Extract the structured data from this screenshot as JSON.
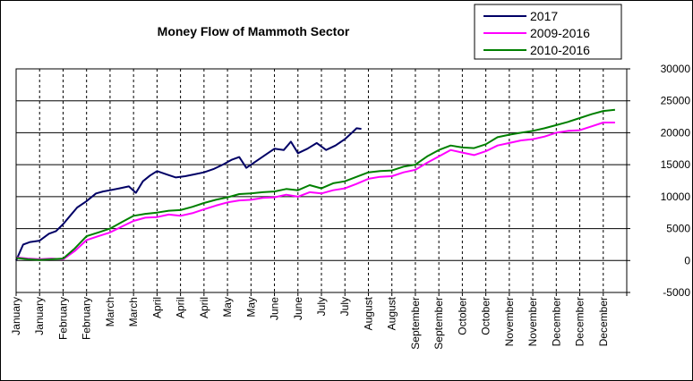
{
  "chart_data": {
    "type": "line",
    "title": "Money Flow of Mammoth Sector",
    "xlabel": "",
    "ylabel": "",
    "ylim": [
      -5000,
      30000
    ],
    "y_ticks": [
      "30000",
      "25000",
      "20000",
      "15000",
      "10000",
      "5000",
      "0",
      "-5000"
    ],
    "x_tick_labels": [
      "January",
      "January",
      "February",
      "February",
      "March",
      "March",
      "April",
      "April",
      "April",
      "May",
      "May",
      "June",
      "June",
      "July",
      "July",
      "August",
      "August",
      "September",
      "September",
      "October",
      "October",
      "November",
      "November",
      "December",
      "December",
      "December"
    ],
    "grid": "horizontal solid, vertical dashed",
    "legend_position": "top-right",
    "series": [
      {
        "name": "2017",
        "color": "#000066",
        "points": [
          [
            0,
            0
          ],
          [
            0.3,
            2500
          ],
          [
            0.6,
            2900
          ],
          [
            1,
            3100
          ],
          [
            1.4,
            4200
          ],
          [
            1.7,
            4600
          ],
          [
            2,
            5700
          ],
          [
            2.3,
            7000
          ],
          [
            2.6,
            8300
          ],
          [
            3,
            9300
          ],
          [
            3.4,
            10500
          ],
          [
            3.7,
            10800
          ],
          [
            4,
            11000
          ],
          [
            4.4,
            11300
          ],
          [
            4.8,
            11600
          ],
          [
            5.1,
            10600
          ],
          [
            5.4,
            12400
          ],
          [
            5.7,
            13300
          ],
          [
            6,
            14000
          ],
          [
            6.4,
            13500
          ],
          [
            6.8,
            13000
          ],
          [
            7.2,
            13200
          ],
          [
            7.6,
            13500
          ],
          [
            8,
            13800
          ],
          [
            8.4,
            14300
          ],
          [
            8.8,
            15000
          ],
          [
            9.2,
            15800
          ],
          [
            9.5,
            16200
          ],
          [
            9.8,
            14500
          ],
          [
            10.2,
            15500
          ],
          [
            10.6,
            16500
          ],
          [
            11,
            17500
          ],
          [
            11.4,
            17300
          ],
          [
            11.7,
            18600
          ],
          [
            12,
            16800
          ],
          [
            12.4,
            17500
          ],
          [
            12.8,
            18400
          ],
          [
            13.2,
            17300
          ],
          [
            13.6,
            18000
          ],
          [
            14,
            19000
          ],
          [
            14.3,
            20000
          ],
          [
            14.5,
            20700
          ],
          [
            14.7,
            20600
          ]
        ]
      },
      {
        "name": "2009-2016",
        "color": "#ff00ff",
        "points": [
          [
            0,
            500
          ],
          [
            0.5,
            300
          ],
          [
            1,
            200
          ],
          [
            1.5,
            300
          ],
          [
            2,
            200
          ],
          [
            2.5,
            1500
          ],
          [
            3,
            3200
          ],
          [
            3.5,
            3800
          ],
          [
            4,
            4400
          ],
          [
            4.5,
            5300
          ],
          [
            5,
            6200
          ],
          [
            5.5,
            6700
          ],
          [
            6,
            6800
          ],
          [
            6.5,
            7200
          ],
          [
            7,
            7000
          ],
          [
            7.5,
            7400
          ],
          [
            8,
            8000
          ],
          [
            8.5,
            8600
          ],
          [
            9,
            9100
          ],
          [
            9.5,
            9400
          ],
          [
            10,
            9500
          ],
          [
            10.5,
            9800
          ],
          [
            11,
            9900
          ],
          [
            11.5,
            10300
          ],
          [
            12,
            10000
          ],
          [
            12.5,
            10700
          ],
          [
            13,
            10500
          ],
          [
            13.5,
            11000
          ],
          [
            14,
            11300
          ],
          [
            14.5,
            12000
          ],
          [
            15,
            12800
          ],
          [
            15.5,
            13100
          ],
          [
            16,
            13200
          ],
          [
            16.5,
            13800
          ],
          [
            17,
            14200
          ],
          [
            17.5,
            15300
          ],
          [
            18,
            16300
          ],
          [
            18.5,
            17300
          ],
          [
            19,
            16900
          ],
          [
            19.5,
            16500
          ],
          [
            20,
            17100
          ],
          [
            20.5,
            18000
          ],
          [
            21,
            18400
          ],
          [
            21.5,
            18800
          ],
          [
            22,
            19000
          ],
          [
            22.5,
            19400
          ],
          [
            23,
            20000
          ],
          [
            23.5,
            20300
          ],
          [
            24,
            20400
          ],
          [
            24.5,
            21000
          ],
          [
            25,
            21600
          ],
          [
            25.5,
            21600
          ]
        ]
      },
      {
        "name": "2010-2016",
        "color": "#008000",
        "points": [
          [
            0,
            400
          ],
          [
            0.5,
            200
          ],
          [
            1,
            100
          ],
          [
            1.5,
            200
          ],
          [
            2,
            300
          ],
          [
            2.5,
            1900
          ],
          [
            3,
            3800
          ],
          [
            3.5,
            4400
          ],
          [
            4,
            5000
          ],
          [
            4.5,
            6000
          ],
          [
            5,
            7000
          ],
          [
            5.5,
            7300
          ],
          [
            6,
            7500
          ],
          [
            6.5,
            7800
          ],
          [
            7,
            7900
          ],
          [
            7.5,
            8400
          ],
          [
            8,
            9000
          ],
          [
            8.5,
            9500
          ],
          [
            9,
            9900
          ],
          [
            9.5,
            10400
          ],
          [
            10,
            10500
          ],
          [
            10.5,
            10700
          ],
          [
            11,
            10800
          ],
          [
            11.5,
            11200
          ],
          [
            12,
            11000
          ],
          [
            12.5,
            11800
          ],
          [
            13,
            11300
          ],
          [
            13.5,
            12100
          ],
          [
            14,
            12400
          ],
          [
            14.5,
            13100
          ],
          [
            15,
            13800
          ],
          [
            15.5,
            14000
          ],
          [
            16,
            14100
          ],
          [
            16.5,
            14700
          ],
          [
            17,
            15000
          ],
          [
            17.5,
            16300
          ],
          [
            18,
            17300
          ],
          [
            18.5,
            18000
          ],
          [
            19,
            17700
          ],
          [
            19.5,
            17600
          ],
          [
            20,
            18200
          ],
          [
            20.5,
            19300
          ],
          [
            21,
            19700
          ],
          [
            21.5,
            20000
          ],
          [
            22,
            20300
          ],
          [
            22.5,
            20700
          ],
          [
            23,
            21200
          ],
          [
            23.5,
            21700
          ],
          [
            24,
            22300
          ],
          [
            24.5,
            22900
          ],
          [
            25,
            23400
          ],
          [
            25.5,
            23600
          ]
        ]
      }
    ]
  }
}
